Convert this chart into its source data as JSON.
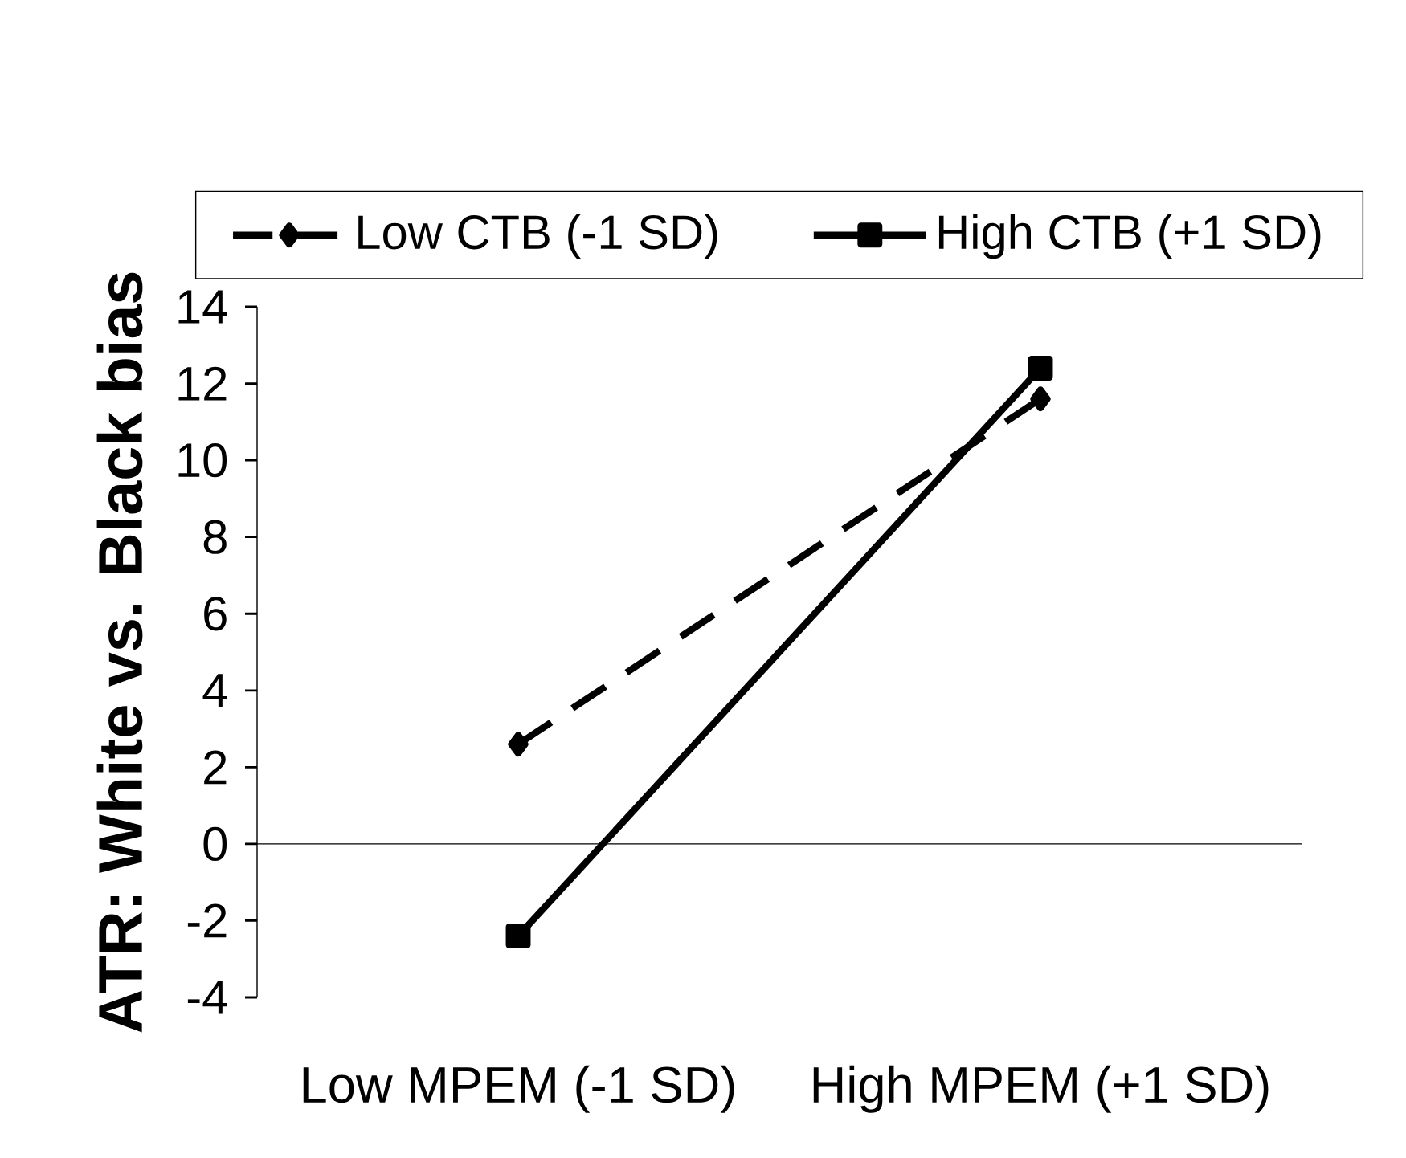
{
  "chart_data": {
    "type": "line",
    "ylabel": "ATR: White vs. Black  bias",
    "categories": [
      "Low MPEM (-1 SD)",
      "High MPEM (+1 SD)"
    ],
    "series": [
      {
        "name": "Low CTB (-1 SD)",
        "color": "#000000",
        "values": [
          2.6,
          11.6
        ],
        "marker": "diamond",
        "line_style": "dashed"
      },
      {
        "name": "High CTB (+1 SD)",
        "color": "#000000",
        "values": [
          -2.4,
          12.4
        ],
        "marker": "square",
        "line_style": "solid"
      }
    ],
    "ylim": [
      -4,
      14
    ],
    "yticks": [
      -4,
      -2,
      0,
      2,
      4,
      6,
      8,
      10,
      12,
      14
    ],
    "legend": "top"
  }
}
